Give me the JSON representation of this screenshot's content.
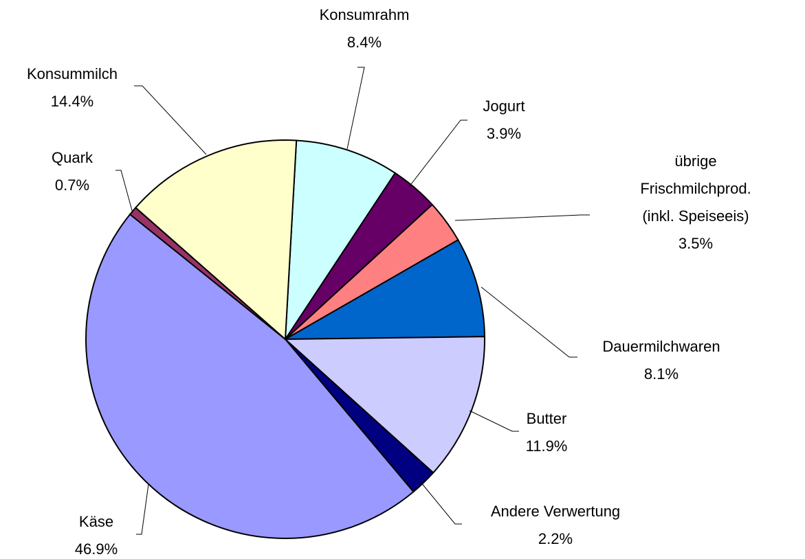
{
  "chart_data": {
    "type": "pie",
    "categories": [
      "Konsumrahm",
      "Jogurt",
      "übrige Frischmilchprod.\n(inkl. Speiseeis)",
      "Dauermilchwaren",
      "Butter",
      "Andere Verwertung",
      "Käse",
      "Quark",
      "Konsummilch"
    ],
    "values": [
      8.4,
      3.9,
      3.5,
      8.1,
      11.9,
      2.2,
      46.9,
      0.7,
      14.4
    ],
    "value_labels": [
      "8.4%",
      "3.9%",
      "3.5%",
      "8.1%",
      "11.9%",
      "2.2%",
      "46.9%",
      "0.7%",
      "14.4%"
    ],
    "colors": [
      "#ccffff",
      "#660066",
      "#ff8080",
      "#0066cc",
      "#ccccff",
      "#000080",
      "#9999ff",
      "#993366",
      "#ffffcc"
    ]
  }
}
